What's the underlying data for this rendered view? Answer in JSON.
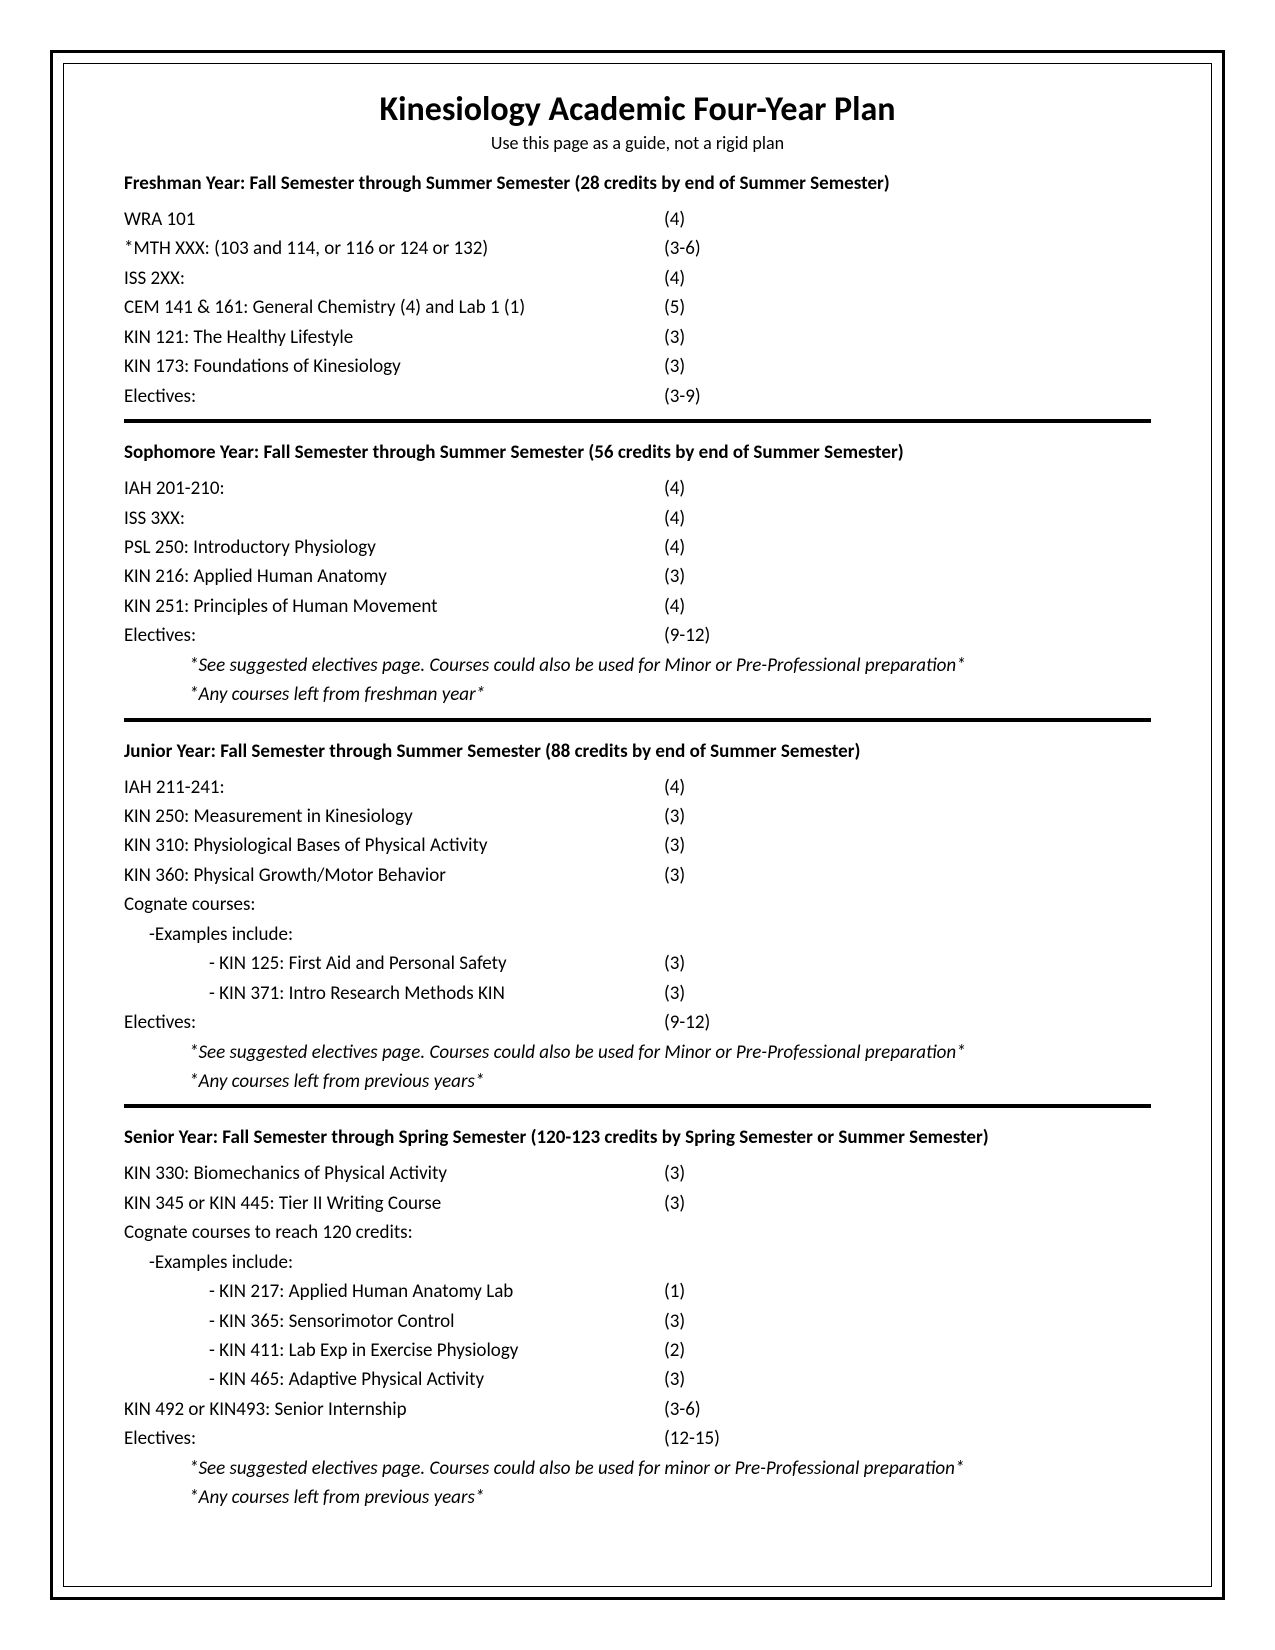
{
  "title": "Kinesiology Academic Four-Year Plan",
  "subtitle": "Use this page as a guide, not a rigid plan",
  "years": [
    {
      "heading": "Freshman Year: Fall Semester through Summer Semester (28 credits by end of Summer Semester)",
      "courses": [
        {
          "name": "WRA 101",
          "credits": "(4)"
        },
        {
          "name": "*MTH XXX: (103 and 114, or 116 or 124 or 132)",
          "credits": "(3-6)"
        },
        {
          "name": "ISS 2XX:",
          "credits": "(4)"
        },
        {
          "name": "CEM 141 & 161: General Chemistry (4) and Lab 1 (1)",
          "credits": "(5)"
        },
        {
          "name": "KIN 121: The Healthy Lifestyle",
          "credits": "(3)"
        },
        {
          "name": "KIN 173: Foundations of Kinesiology",
          "credits": "(3)"
        },
        {
          "name": "Electives:",
          "credits": "(3-9)"
        }
      ],
      "notes": []
    },
    {
      "heading": "Sophomore Year: Fall Semester through Summer Semester (56 credits by end of Summer Semester)",
      "courses": [
        {
          "name": "IAH 201-210:",
          "credits": "(4)"
        },
        {
          "name": "ISS 3XX:",
          "credits": "(4)"
        },
        {
          "name": "PSL 250: Introductory Physiology",
          "credits": "(4)"
        },
        {
          "name": "KIN 216: Applied Human Anatomy",
          "credits": "(3)"
        },
        {
          "name": "KIN 251: Principles of Human Movement",
          "credits": "(4)"
        },
        {
          "name": "Electives:",
          "credits": "(9-12)"
        }
      ],
      "notes": [
        "*See suggested electives page. Courses could also be used for Minor or Pre-Professional preparation*",
        "*Any courses left from freshman year*"
      ]
    },
    {
      "heading": "Junior Year: Fall Semester through Summer Semester (88 credits by end of Summer Semester)",
      "courses": [
        {
          "name": "IAH 211-241:",
          "credits": "(4)"
        },
        {
          "name": "KIN 250: Measurement in Kinesiology",
          "credits": "(3)"
        },
        {
          "name": "KIN 310: Physiological Bases of Physical Activity",
          "credits": "(3)"
        },
        {
          "name": "KIN 360: Physical Growth/Motor Behavior",
          "credits": "(3)"
        },
        {
          "name": "Cognate courses:",
          "credits": ""
        },
        {
          "name": "-Examples include:",
          "credits": "",
          "indent": 1
        },
        {
          "name": "- KIN 125: First Aid and Personal Safety",
          "credits": "(3)",
          "indent": 2
        },
        {
          "name": "- KIN 371: Intro Research Methods KIN",
          "credits": "(3)",
          "indent": 2
        },
        {
          "name": "Electives:",
          "credits": "(9-12)"
        }
      ],
      "notes": [
        "*See suggested electives page. Courses could also be used for Minor or Pre-Professional preparation*",
        "*Any courses left from previous years*"
      ]
    },
    {
      "heading": "Senior Year: Fall Semester through Spring Semester (120-123 credits by Spring Semester or Summer Semester)",
      "courses": [
        {
          "name": "KIN 330: Biomechanics of Physical Activity",
          "credits": "(3)"
        },
        {
          "name": "KIN 345 or KIN 445: Tier II Writing Course",
          "credits": "(3)"
        },
        {
          "name": "Cognate courses to reach 120 credits:",
          "credits": ""
        },
        {
          "name": "-Examples include:",
          "credits": "",
          "indent": 1
        },
        {
          "name": "- KIN 217: Applied Human Anatomy Lab",
          "credits": "(1)",
          "indent": 2
        },
        {
          "name": "- KIN 365: Sensorimotor Control",
          "credits": "(3)",
          "indent": 2
        },
        {
          "name": "- KIN 411: Lab Exp in Exercise Physiology",
          "credits": "(2)",
          "indent": 2
        },
        {
          "name": "- KIN 465: Adaptive Physical Activity",
          "credits": "(3)",
          "indent": 2
        },
        {
          "name": "KIN 492 or KIN493: Senior Internship",
          "credits": "(3-6)"
        },
        {
          "name": "Electives:",
          "credits": "(12-15)"
        }
      ],
      "notes": [
        "*See suggested electives page. Courses could also be used for minor or Pre-Professional preparation*",
        "*Any courses left from previous years*"
      ],
      "noDivider": true
    }
  ]
}
